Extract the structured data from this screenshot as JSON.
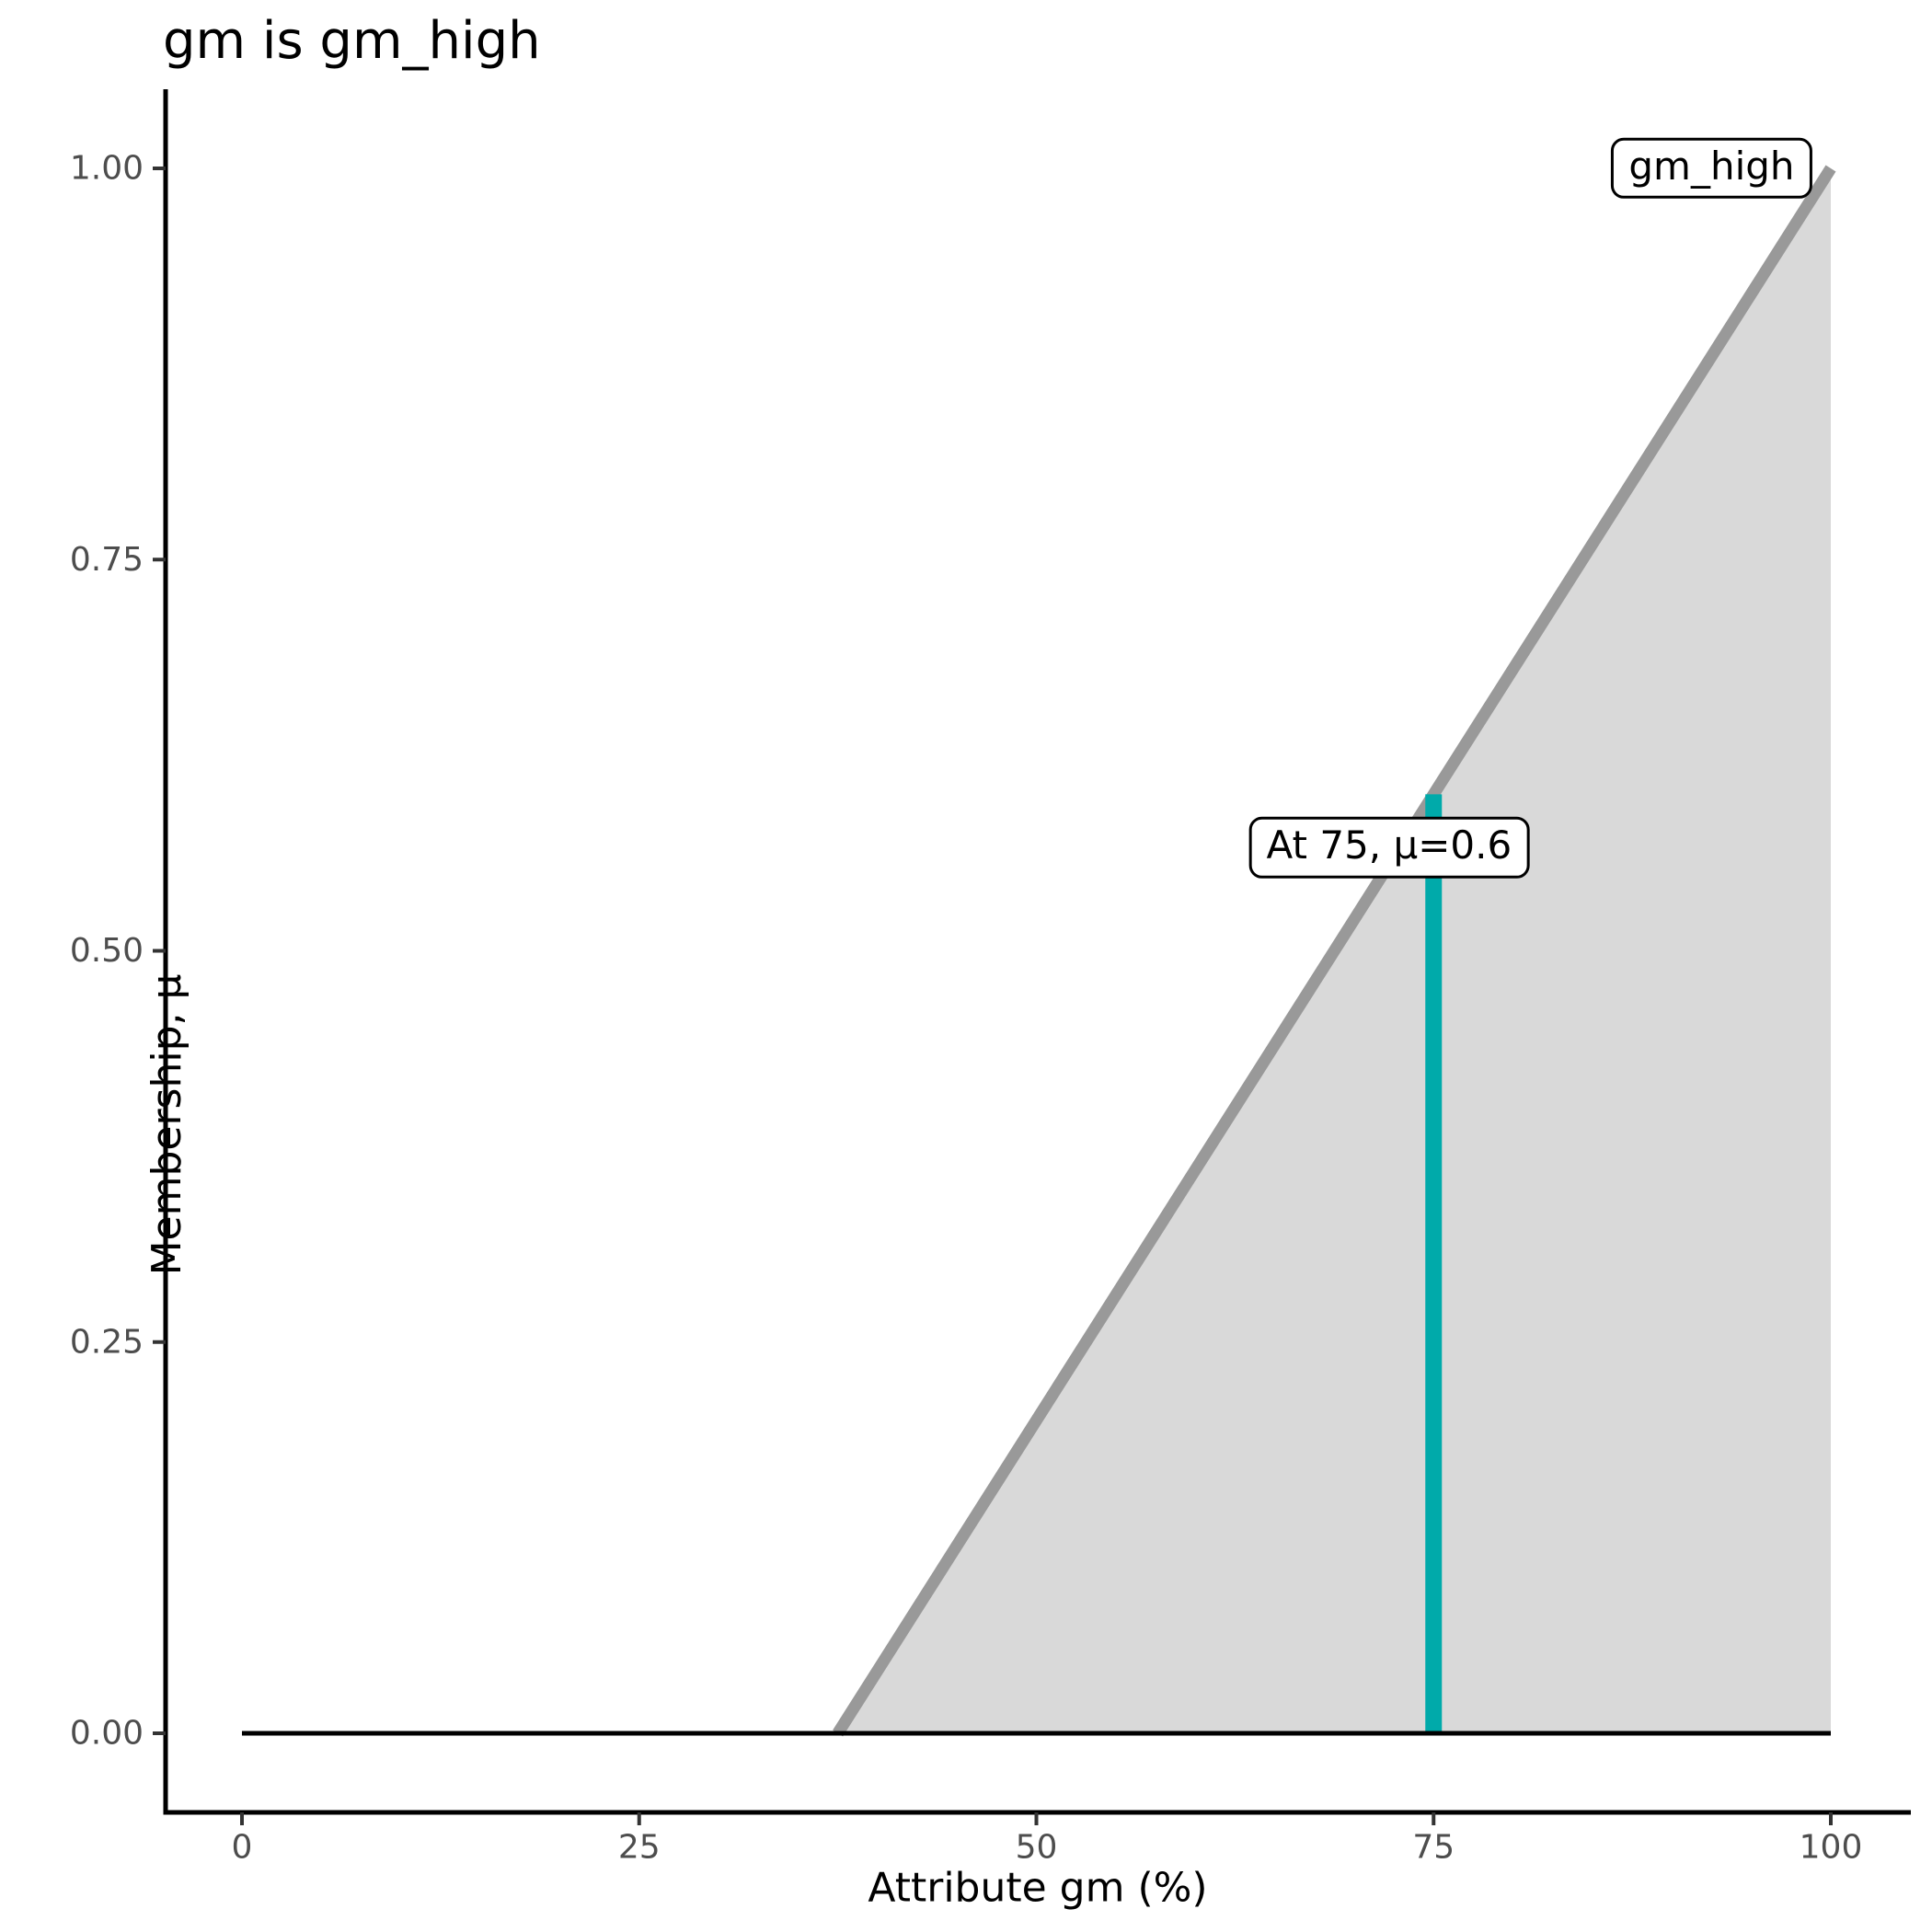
{
  "title": "gm is gm_high",
  "chart_data": {
    "type": "area",
    "title": "gm is gm_high",
    "xlabel": "Attribute gm (%)",
    "ylabel": "Membership, μ",
    "xlim": [
      0,
      100
    ],
    "ylim": [
      0,
      1
    ],
    "grid": false,
    "legend_position": "none",
    "x_ticks": [
      0,
      25,
      50,
      75,
      100
    ],
    "x_tick_labels": [
      "0",
      "25",
      "50",
      "75",
      "100"
    ],
    "y_ticks": [
      0,
      0.25,
      0.5,
      0.75,
      1
    ],
    "y_tick_labels": [
      "0.00",
      "0.25",
      "0.50",
      "0.75",
      "1.00"
    ],
    "colors": {
      "membership_line": "#999999",
      "membership_fill": "#D9D9D9",
      "baseline": "#000000",
      "activation": "#00AAAA",
      "axis_line": "#000000",
      "tick_mark": "#333333",
      "tick_label": "#4D4D4D"
    },
    "series": [
      {
        "name": "universe-baseline",
        "kind": "line",
        "color": "#000000",
        "width": 5,
        "points": [
          [
            0,
            0
          ],
          [
            100,
            0
          ]
        ],
        "z": 3
      },
      {
        "name": "gm-high-membership",
        "kind": "area-line",
        "line_color": "#999999",
        "fill_color": "#D9D9D9",
        "width": 13,
        "line_points": [
          [
            37.5,
            0
          ],
          [
            100,
            1
          ]
        ],
        "fill_points": [
          [
            37.5,
            0
          ],
          [
            100,
            1
          ],
          [
            100,
            0
          ]
        ],
        "z": 1
      },
      {
        "name": "activation-at-75",
        "kind": "segment",
        "color": "#00AAAA",
        "width": 18,
        "points": [
          [
            75,
            0
          ],
          [
            75,
            0.6
          ]
        ],
        "z": 2
      }
    ],
    "annotations": [
      {
        "name": "gm-high-label",
        "text": "gm_high",
        "x": 92.5,
        "y": 1.0
      },
      {
        "name": "activation-label",
        "text": "At 75, μ=0.6",
        "x": 72.2,
        "y": 0.566
      }
    ]
  }
}
